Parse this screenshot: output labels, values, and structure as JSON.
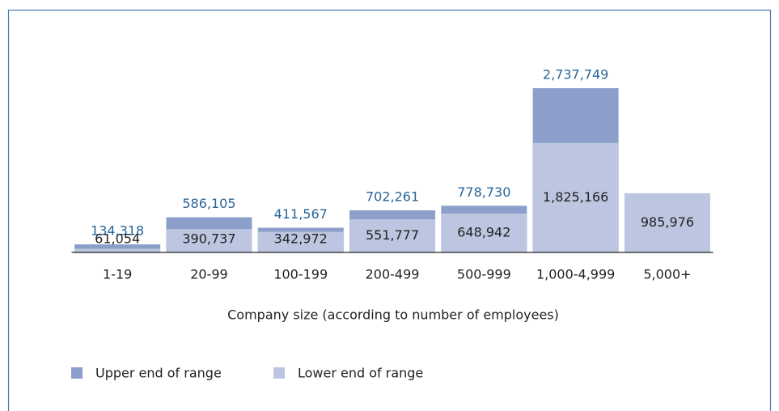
{
  "chart_data": {
    "type": "bar",
    "categories": [
      "1-19",
      "20-99",
      "100-199",
      "200-499",
      "500-999",
      "1,000-4,999",
      "5,000+"
    ],
    "x_label": "Company size (according to number of employees)",
    "series": [
      {
        "name": "Upper end of range",
        "color": "#8c9fca",
        "values": [
          134318,
          586105,
          411567,
          702261,
          778730,
          2737749,
          null
        ],
        "value_labels": [
          "134,318",
          "586,105",
          "411,567",
          "702,261",
          "778,730",
          "2,737,749",
          null
        ]
      },
      {
        "name": "Lower end of range",
        "color": "#bcc6e1",
        "values": [
          61054,
          390737,
          342972,
          551777,
          648942,
          1825166,
          985976
        ],
        "value_labels": [
          "61,054",
          "390,737",
          "342,972",
          "551,777",
          "648,942",
          "1,825,166",
          "985,976"
        ]
      }
    ],
    "legend": "bottom-left"
  }
}
